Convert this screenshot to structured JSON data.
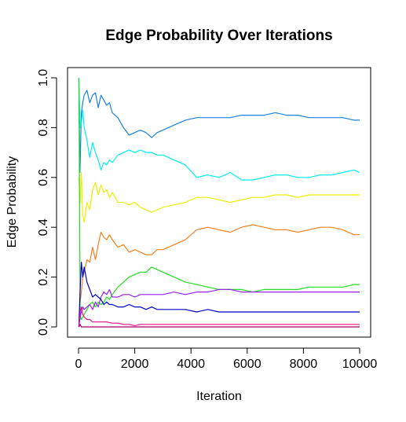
{
  "chart_data": {
    "type": "line",
    "title": "Edge Probability Over Iterations",
    "xlabel": "Iteration",
    "ylabel": "Edge Probability",
    "xlim": [
      0,
      10000
    ],
    "ylim": [
      0,
      1
    ],
    "xticks": [
      "0",
      "2000",
      "4000",
      "6000",
      "8000",
      "10000"
    ],
    "yticks": [
      "0.0",
      "0.2",
      "0.4",
      "0.6",
      "0.8",
      "1.0"
    ],
    "grid": false,
    "legend": "none",
    "series": [
      {
        "color": "#1a80e0",
        "x": [
          10,
          50,
          100,
          150,
          200,
          300,
          400,
          500,
          600,
          700,
          800,
          900,
          1000,
          1100,
          1200,
          1400,
          1600,
          1800,
          2000,
          2200,
          2400,
          2600,
          2800,
          3000,
          3400,
          3800,
          4200,
          4600,
          5000,
          5400,
          5800,
          6200,
          6600,
          7000,
          7400,
          7800,
          8200,
          8600,
          9000,
          9400,
          9800,
          10000
        ],
        "y": [
          1.0,
          0.62,
          0.86,
          0.9,
          0.93,
          0.95,
          0.9,
          0.93,
          0.94,
          0.88,
          0.93,
          0.91,
          0.89,
          0.9,
          0.86,
          0.84,
          0.8,
          0.77,
          0.78,
          0.79,
          0.78,
          0.76,
          0.78,
          0.79,
          0.81,
          0.83,
          0.84,
          0.84,
          0.84,
          0.84,
          0.85,
          0.85,
          0.85,
          0.86,
          0.85,
          0.85,
          0.84,
          0.84,
          0.84,
          0.84,
          0.83,
          0.83
        ]
      },
      {
        "color": "#00eeee",
        "x": [
          10,
          60,
          100,
          150,
          200,
          300,
          400,
          500,
          600,
          700,
          800,
          900,
          1000,
          1100,
          1200,
          1400,
          1600,
          1800,
          2000,
          2200,
          2400,
          2600,
          2800,
          3000,
          3400,
          3800,
          4200,
          4600,
          5000,
          5400,
          5800,
          6200,
          6600,
          7000,
          7400,
          7800,
          8200,
          8600,
          9000,
          9400,
          9800,
          10000
        ],
        "y": [
          1.0,
          0.8,
          0.82,
          0.87,
          0.8,
          0.75,
          0.68,
          0.74,
          0.7,
          0.67,
          0.63,
          0.66,
          0.65,
          0.67,
          0.66,
          0.69,
          0.7,
          0.71,
          0.7,
          0.71,
          0.7,
          0.7,
          0.69,
          0.69,
          0.67,
          0.65,
          0.6,
          0.61,
          0.6,
          0.62,
          0.59,
          0.59,
          0.6,
          0.61,
          0.61,
          0.6,
          0.6,
          0.61,
          0.61,
          0.62,
          0.63,
          0.62
        ]
      },
      {
        "color": "#eeee00",
        "x": [
          10,
          60,
          100,
          150,
          200,
          300,
          400,
          500,
          600,
          700,
          800,
          900,
          1000,
          1100,
          1200,
          1400,
          1600,
          1800,
          2000,
          2200,
          2400,
          2600,
          2800,
          3000,
          3400,
          3800,
          4200,
          4600,
          5000,
          5400,
          5800,
          6200,
          6600,
          7000,
          7400,
          7800,
          8200,
          8600,
          9000,
          9400,
          9800,
          10000
        ],
        "y": [
          0.6,
          0.5,
          0.62,
          0.45,
          0.42,
          0.5,
          0.47,
          0.55,
          0.58,
          0.53,
          0.57,
          0.54,
          0.55,
          0.52,
          0.54,
          0.5,
          0.5,
          0.49,
          0.5,
          0.48,
          0.47,
          0.46,
          0.47,
          0.48,
          0.49,
          0.5,
          0.52,
          0.52,
          0.51,
          0.5,
          0.51,
          0.52,
          0.52,
          0.53,
          0.53,
          0.52,
          0.53,
          0.53,
          0.53,
          0.53,
          0.53,
          0.53
        ]
      },
      {
        "color": "#f08020",
        "x": [
          10,
          60,
          100,
          150,
          200,
          300,
          400,
          500,
          600,
          700,
          800,
          900,
          1000,
          1100,
          1200,
          1400,
          1600,
          1800,
          2000,
          2200,
          2400,
          2600,
          2800,
          3000,
          3400,
          3800,
          4200,
          4600,
          5000,
          5400,
          5800,
          6200,
          6600,
          7000,
          7400,
          7800,
          8200,
          8600,
          9000,
          9400,
          9800,
          10000
        ],
        "y": [
          0.0,
          0.1,
          0.14,
          0.2,
          0.22,
          0.27,
          0.26,
          0.32,
          0.27,
          0.33,
          0.38,
          0.36,
          0.35,
          0.37,
          0.35,
          0.32,
          0.33,
          0.3,
          0.31,
          0.3,
          0.29,
          0.29,
          0.31,
          0.31,
          0.33,
          0.35,
          0.39,
          0.4,
          0.39,
          0.38,
          0.4,
          0.41,
          0.4,
          0.39,
          0.39,
          0.38,
          0.39,
          0.4,
          0.4,
          0.39,
          0.37,
          0.37
        ]
      },
      {
        "color": "#22dd22",
        "x": [
          10,
          60,
          100,
          150,
          200,
          300,
          400,
          500,
          600,
          700,
          800,
          900,
          1000,
          1100,
          1200,
          1400,
          1600,
          1800,
          2000,
          2200,
          2400,
          2600,
          2800,
          3000,
          3400,
          3800,
          4200,
          4600,
          5000,
          5400,
          5800,
          6200,
          6600,
          7000,
          7400,
          7800,
          8200,
          8600,
          9000,
          9400,
          9800,
          10000
        ],
        "y": [
          1.0,
          0.05,
          0.03,
          0.04,
          0.05,
          0.07,
          0.09,
          0.1,
          0.08,
          0.1,
          0.09,
          0.1,
          0.12,
          0.11,
          0.13,
          0.16,
          0.18,
          0.2,
          0.21,
          0.22,
          0.22,
          0.24,
          0.23,
          0.22,
          0.2,
          0.18,
          0.17,
          0.16,
          0.15,
          0.15,
          0.15,
          0.14,
          0.15,
          0.15,
          0.15,
          0.15,
          0.16,
          0.16,
          0.16,
          0.16,
          0.17,
          0.17
        ]
      },
      {
        "color": "#9922ee",
        "x": [
          10,
          60,
          100,
          150,
          200,
          300,
          400,
          500,
          600,
          700,
          800,
          900,
          1000,
          1100,
          1200,
          1400,
          1600,
          1800,
          2000,
          2200,
          2400,
          2600,
          2800,
          3000,
          3400,
          3800,
          4200,
          4600,
          5000,
          5400,
          5800,
          6200,
          6600,
          7000,
          7400,
          7800,
          8200,
          8600,
          9000,
          9400,
          9800,
          10000
        ],
        "y": [
          0.0,
          0.04,
          0.06,
          0.08,
          0.07,
          0.08,
          0.09,
          0.07,
          0.1,
          0.08,
          0.12,
          0.14,
          0.13,
          0.15,
          0.12,
          0.12,
          0.13,
          0.13,
          0.12,
          0.13,
          0.13,
          0.13,
          0.13,
          0.13,
          0.14,
          0.13,
          0.14,
          0.14,
          0.15,
          0.15,
          0.14,
          0.14,
          0.14,
          0.14,
          0.14,
          0.14,
          0.14,
          0.14,
          0.14,
          0.14,
          0.14,
          0.14
        ]
      },
      {
        "color": "#0000cc",
        "x": [
          10,
          60,
          100,
          150,
          200,
          300,
          400,
          500,
          600,
          700,
          800,
          900,
          1000,
          1100,
          1200,
          1400,
          1600,
          1800,
          2000,
          2200,
          2400,
          2600,
          2800,
          3000,
          3400,
          3800,
          4200,
          4600,
          5000,
          5400,
          5800,
          6200,
          6600,
          7000,
          7400,
          7800,
          8200,
          8600,
          9000,
          9400,
          9800,
          10000
        ],
        "y": [
          0.0,
          0.15,
          0.26,
          0.2,
          0.24,
          0.18,
          0.15,
          0.12,
          0.13,
          0.12,
          0.11,
          0.09,
          0.1,
          0.09,
          0.09,
          0.08,
          0.08,
          0.09,
          0.08,
          0.08,
          0.07,
          0.08,
          0.07,
          0.07,
          0.07,
          0.07,
          0.06,
          0.07,
          0.06,
          0.06,
          0.06,
          0.06,
          0.06,
          0.06,
          0.06,
          0.06,
          0.06,
          0.06,
          0.06,
          0.06,
          0.06,
          0.06
        ]
      },
      {
        "color": "#ee1188",
        "x": [
          10,
          60,
          100,
          150,
          200,
          300,
          400,
          500,
          700,
          900,
          1000,
          1200,
          1400,
          1600,
          1800,
          2000,
          2200,
          2400,
          2600,
          2800,
          3000,
          3400,
          3800,
          4200,
          4600,
          5000,
          5400,
          5800,
          6200,
          6600,
          7000,
          7400,
          7800,
          8200,
          8600,
          9000,
          9400,
          9800,
          10000
        ],
        "y": [
          0.0,
          0.06,
          0.08,
          0.05,
          0.04,
          0.03,
          0.03,
          0.02,
          0.02,
          0.02,
          0.02,
          0.015,
          0.015,
          0.01,
          0.01,
          0.005,
          0.01,
          0.01,
          0.01,
          0.01,
          0.01,
          0.01,
          0.01,
          0.01,
          0.01,
          0.01,
          0.01,
          0.01,
          0.01,
          0.01,
          0.01,
          0.01,
          0.01,
          0.01,
          0.01,
          0.01,
          0.01,
          0.01,
          0.01
        ]
      },
      {
        "color": "#aa0066",
        "x": [
          10,
          60,
          100,
          200,
          400,
          1000,
          2000,
          4000,
          6000,
          8000,
          10000
        ],
        "y": [
          0.0,
          0.01,
          0.0,
          0.0,
          0.0,
          0.0,
          0.0,
          0.0,
          0.0,
          0.0,
          0.0
        ]
      }
    ]
  }
}
